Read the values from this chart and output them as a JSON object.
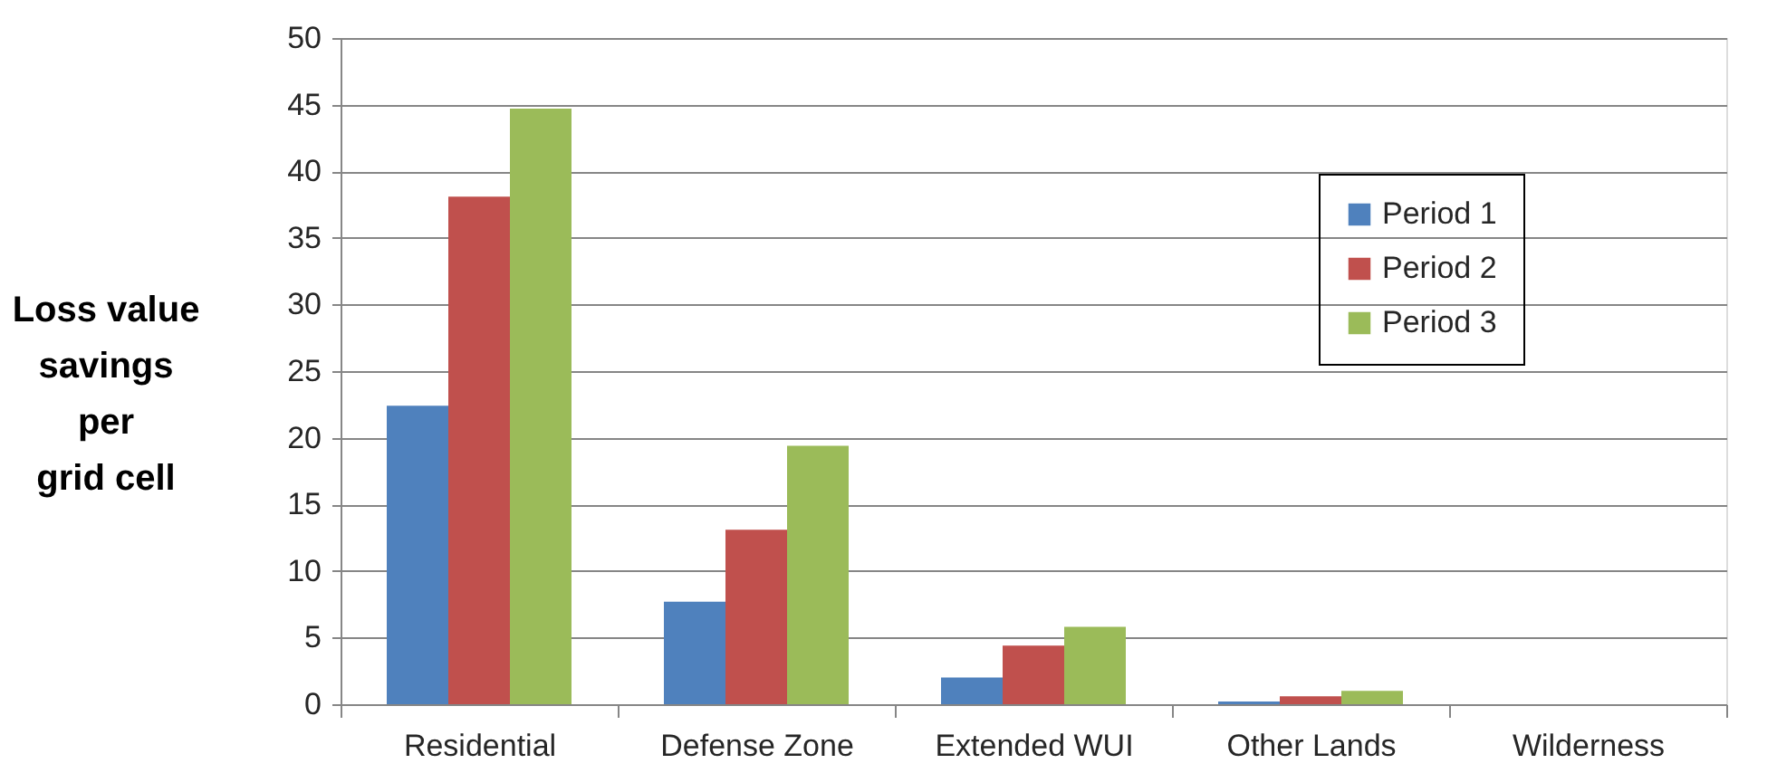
{
  "chart_data": {
    "type": "bar",
    "ylabel": "Loss value\nsavings\nper\ngrid cell",
    "categories": [
      "Residential",
      "Defense Zone",
      "Extended WUI",
      "Other Lands",
      "Wilderness"
    ],
    "series": [
      {
        "name": "Period 1",
        "color": "#4f81bd",
        "values": [
          22.4,
          7.7,
          2.0,
          0.2,
          0
        ]
      },
      {
        "name": "Period 2",
        "color": "#c0504d",
        "values": [
          38.1,
          13.1,
          4.4,
          0.6,
          0
        ]
      },
      {
        "name": "Period 3",
        "color": "#9bbb59",
        "values": [
          44.7,
          19.4,
          5.8,
          1.0,
          0
        ]
      }
    ],
    "ylim": [
      0,
      50
    ],
    "yticks": [
      0,
      5,
      10,
      15,
      20,
      25,
      30,
      35,
      40,
      45,
      50
    ],
    "grid": "y",
    "legend": "top right"
  }
}
